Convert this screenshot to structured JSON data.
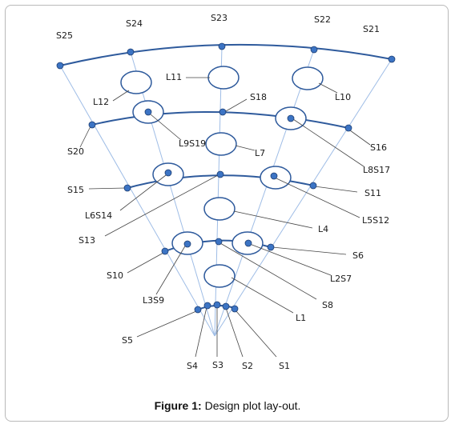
{
  "caption": {
    "label": "Figure 1:",
    "text": " Design plot lay-out."
  },
  "colors": {
    "curve": "#2e5a9c",
    "point": "#3c74c4",
    "ray": "#9fbde6",
    "leader": "#444444"
  },
  "labels": {
    "S1": "S1",
    "S2": "S2",
    "S3": "S3",
    "S4": "S4",
    "S5": "S5",
    "S6": "S6",
    "S8": "S8",
    "S10": "S10",
    "S11": "S11",
    "S13": "S13",
    "S15": "S15",
    "S16": "S16",
    "S18": "S18",
    "S20": "S20",
    "S21": "S21",
    "S22": "S22",
    "S23": "S23",
    "S24": "S24",
    "S25": "S25",
    "L1": "L1",
    "L2S7": "L2S7",
    "L3S9": "L3S9",
    "L4": "L4",
    "L5S12": "L5S12",
    "L6S14": "L6S14",
    "L7": "L7",
    "L8S17": "L8S17",
    "L9S19": "L9S19",
    "L10": "L10",
    "L11": "L11",
    "L12": "L12"
  }
}
